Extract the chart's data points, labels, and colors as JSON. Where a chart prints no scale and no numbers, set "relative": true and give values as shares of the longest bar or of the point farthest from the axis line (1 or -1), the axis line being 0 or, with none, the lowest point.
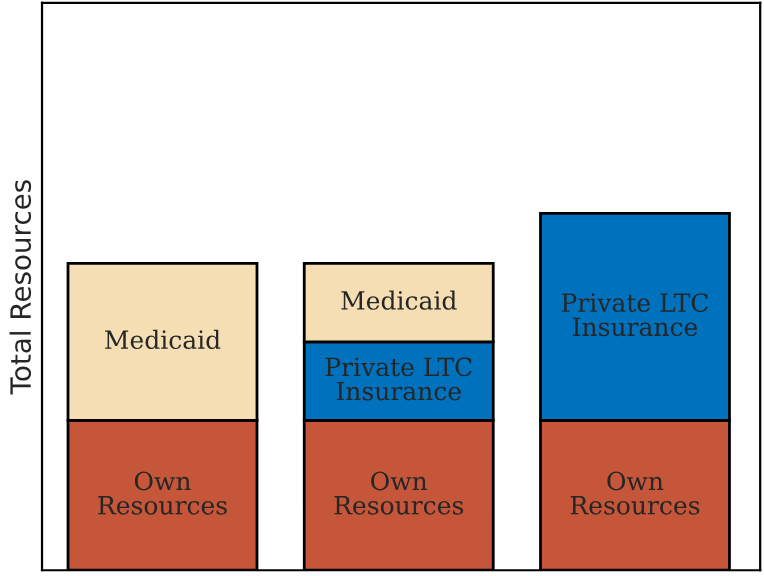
{
  "chart_data": {
    "type": "bar",
    "stacked": true,
    "relative": true,
    "ylabel": "Total Resources",
    "categories": [
      null,
      null,
      null
    ],
    "series": [
      {
        "name": "Own\nResources",
        "color": "#c5563a",
        "values": [
          0.42,
          0.42,
          0.42
        ]
      },
      {
        "name": "Private LTC\nInsurance",
        "color": "#0072bd",
        "values": [
          null,
          0.22,
          0.58
        ]
      },
      {
        "name": "Medicaid",
        "color": "#f5deb3",
        "values": [
          0.44,
          0.22,
          null
        ]
      }
    ]
  }
}
